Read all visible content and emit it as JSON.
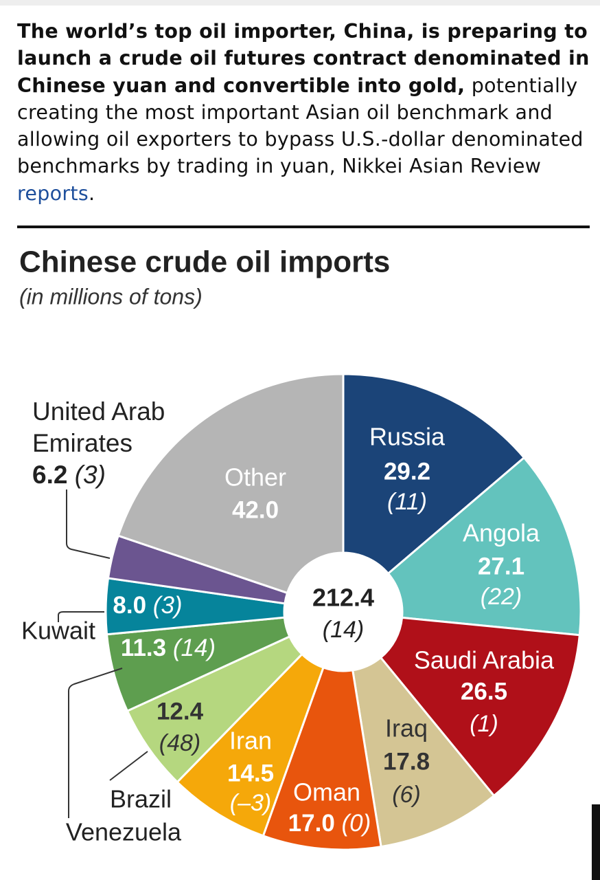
{
  "article": {
    "lead_bold": "The world’s top oil importer, China, is preparing to launch a crude oil futures contract denominated in Chinese yuan and convertible into gold,",
    "lead_text": " potentially creating the most important Asian oil benchmark and allowing oil exporters to bypass U.S.-dollar denominated benchmarks by trading in yuan, Nikkei Asian Review ",
    "link": "reports",
    "end": "."
  },
  "chart_data": {
    "type": "donut",
    "title": "Chinese crude oil imports",
    "subtitle": "(in millions of tons)",
    "categories": [
      "Russia",
      "Angola",
      "Saudi Arabia",
      "Iraq",
      "Oman",
      "Iran",
      "Brazil",
      "Venezuela",
      "Kuwait",
      "United Arab Emirates",
      "Other"
    ],
    "values": [
      29.2,
      27.1,
      26.5,
      17.8,
      17.0,
      14.5,
      12.4,
      11.3,
      8.0,
      6.2,
      42.0
    ],
    "value_labels": [
      "29.2",
      "27.1",
      "26.5",
      "17.8",
      "17.0",
      "14.5",
      "12.4",
      "11.3",
      "8.0",
      "6.2",
      "42.0"
    ],
    "notes": [
      "(11)",
      "(22)",
      "(1)",
      "(6)",
      "(0)",
      "(–3)",
      "(48)",
      "(14)",
      "(3)",
      "(3)",
      null
    ],
    "colors": [
      "#1b4478",
      "#63c3bd",
      "#b01019",
      "#d4c594",
      "#e8550d",
      "#f5a80a",
      "#b5d77f",
      "#5e9e4f",
      "#06849b",
      "#6b5590",
      "#b5b5b5"
    ],
    "total": 212.4,
    "total_note": "(14)"
  }
}
